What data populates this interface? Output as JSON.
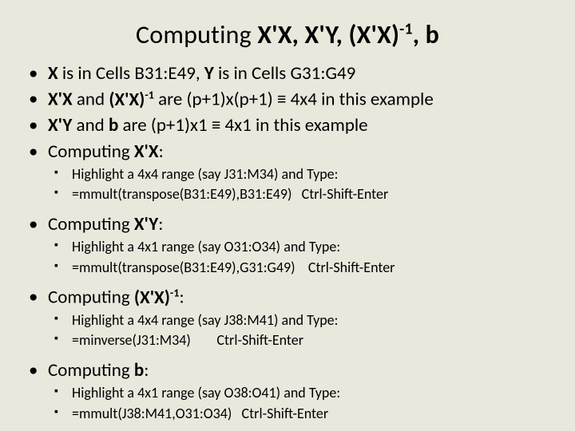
{
  "title": {
    "plain": "Computing ",
    "bold_rest": ", b"
  },
  "items": [
    {
      "type": "l1",
      "html": "<span class='b'>X</span> is in Cells B31:E49, <span class='b'>Y</span> is in Cells G31:G49"
    },
    {
      "type": "l1",
      "html": "<span class='b'>X'X</span> and <span class='b'>(X'X)<span class='sup'>-1</span></span> are (p+1)x(p+1) ≡ 4x4 in this example"
    },
    {
      "type": "l1",
      "html": "<span class='b'>X'Y</span> and <span class='b'>b</span> are (p+1)x1 ≡ 4x1 in this example"
    },
    {
      "type": "l1",
      "html": "Computing <span class='b'>X'X</span>:",
      "sub": [
        "Highlight a 4x4 range (say J31:M34) and Type:",
        "=mmult(transpose(B31:E49),B31:E49)&nbsp;&nbsp;&nbsp;Ctrl-Shift-Enter"
      ]
    },
    {
      "type": "l1",
      "html": "Computing <span class='b'>X'Y</span>:",
      "sub": [
        "Highlight a 4x1 range (say O31:O34) and Type:",
        "=mmult(transpose(B31:E49),G31:G49)&nbsp;&nbsp;&nbsp;&nbsp;Ctrl-Shift-Enter"
      ]
    },
    {
      "type": "l1",
      "html": "Computing <span class='b'>(X'X)<span class='sup'>-1</span></span>:",
      "sub": [
        "Highlight a 4x4 range (say J38:M41) and Type:",
        "=minverse(J31:M34)&nbsp;&nbsp;&nbsp;&nbsp;&nbsp;&nbsp;&nbsp;&nbsp;Ctrl-Shift-Enter"
      ]
    },
    {
      "type": "l1",
      "html": "Computing <span class='b'>b</span>:",
      "sub": [
        "Highlight a 4x1 range (say O38:O41) and Type:",
        "=mmult(J38:M41,O31:O34)&nbsp;&nbsp;&nbsp;Ctrl-Shift-Enter"
      ]
    }
  ],
  "colors": {
    "background": "#eae8dd",
    "text": "#000000"
  }
}
